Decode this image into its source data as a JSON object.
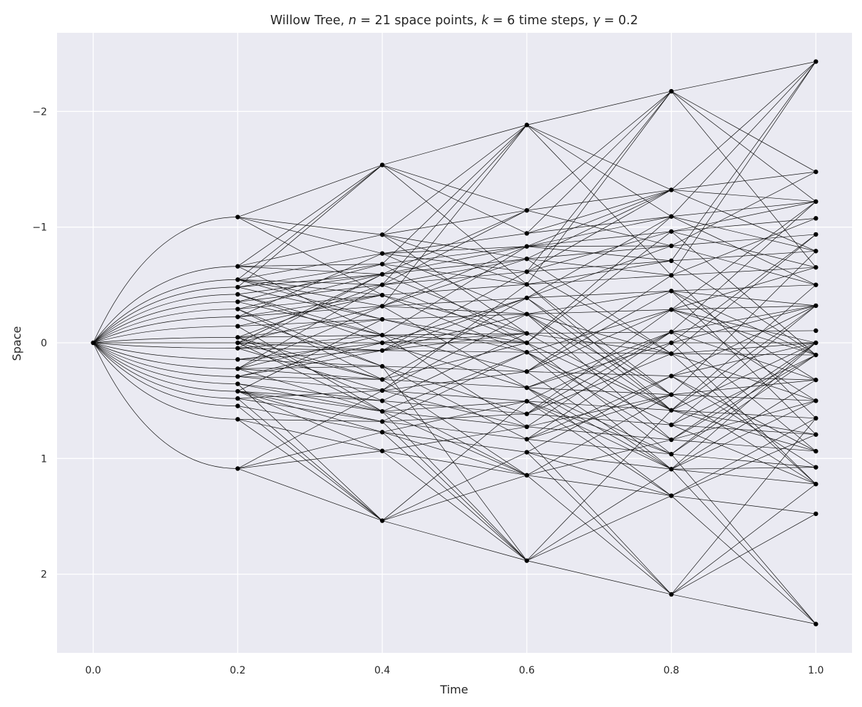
{
  "chart_data": {
    "type": "scatter",
    "title": {
      "prefix": "Willow Tree, ",
      "n_symbol": "n",
      "n_text": " = 21 space points, ",
      "k_symbol": "k",
      "k_text": " = 6 time steps, ",
      "gamma_symbol": "γ",
      "gamma_text": " = 0.2"
    },
    "xlabel": "Time",
    "ylabel": "Space",
    "xlim": [
      -0.05,
      1.05
    ],
    "ylim": [
      2.68,
      -2.68
    ],
    "y_inverted": true,
    "grid": true,
    "x_ticks": [
      {
        "value": 0.0,
        "label": "0.0"
      },
      {
        "value": 0.2,
        "label": "0.2"
      },
      {
        "value": 0.4,
        "label": "0.4"
      },
      {
        "value": 0.6,
        "label": "0.6"
      },
      {
        "value": 0.8,
        "label": "0.8"
      },
      {
        "value": 1.0,
        "label": "1.0"
      }
    ],
    "y_ticks": [
      {
        "value": -2,
        "label": "−2"
      },
      {
        "value": -1,
        "label": "−1"
      },
      {
        "value": 0,
        "label": "0"
      },
      {
        "value": 1,
        "label": "1"
      },
      {
        "value": 2,
        "label": "2"
      }
    ],
    "times": [
      0.0,
      0.2,
      0.4,
      0.6,
      0.8,
      1.0
    ],
    "nodes_base": [
      -2.431,
      -1.478,
      -1.221,
      -1.076,
      -0.937,
      -0.793,
      -0.652,
      -0.501,
      -0.321,
      -0.105,
      0.0,
      0.105,
      0.321,
      0.501,
      0.652,
      0.793,
      0.937,
      1.076,
      1.221,
      1.478,
      2.431
    ],
    "node_colors": {
      "node": "#000000",
      "edge": "#111111",
      "background": "#EAEAF2",
      "grid": "#FFFFFF"
    }
  }
}
